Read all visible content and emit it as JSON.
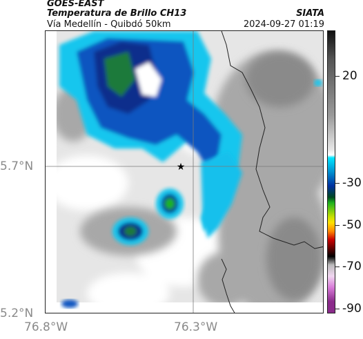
{
  "header": {
    "source": "GOES-EAST",
    "title": "Temperatura de Brillo CH13",
    "subtitle": "Vía Medellín - Quibdó 50km",
    "org": "SIATA",
    "datetime": "2024-09-27 01:19"
  },
  "axes": {
    "lat_labels": [
      "5.7°N",
      "5.2°N"
    ],
    "lon_labels": [
      "76.8°W",
      "76.3°W"
    ]
  },
  "colorbar": {
    "ticks": [
      "20",
      "-30",
      "-50",
      "-70",
      "-90"
    ],
    "unit": "",
    "colors": [
      "#111111",
      "#9a9a9a",
      "#ffffff",
      "#00e5ff",
      "#0030a0",
      "#1fb31f",
      "#ffe000",
      "#cc0000",
      "#000000",
      "#d87bd8",
      "#8a2b8a"
    ]
  },
  "map": {
    "marker_icon": "star-icon",
    "colors": {
      "cloud_gray": "#9c9c9c",
      "light_gray": "#e4e4e4",
      "cyan": "#10c8f0",
      "blue": "#0a3fa8",
      "green": "#1f8a3a"
    }
  }
}
